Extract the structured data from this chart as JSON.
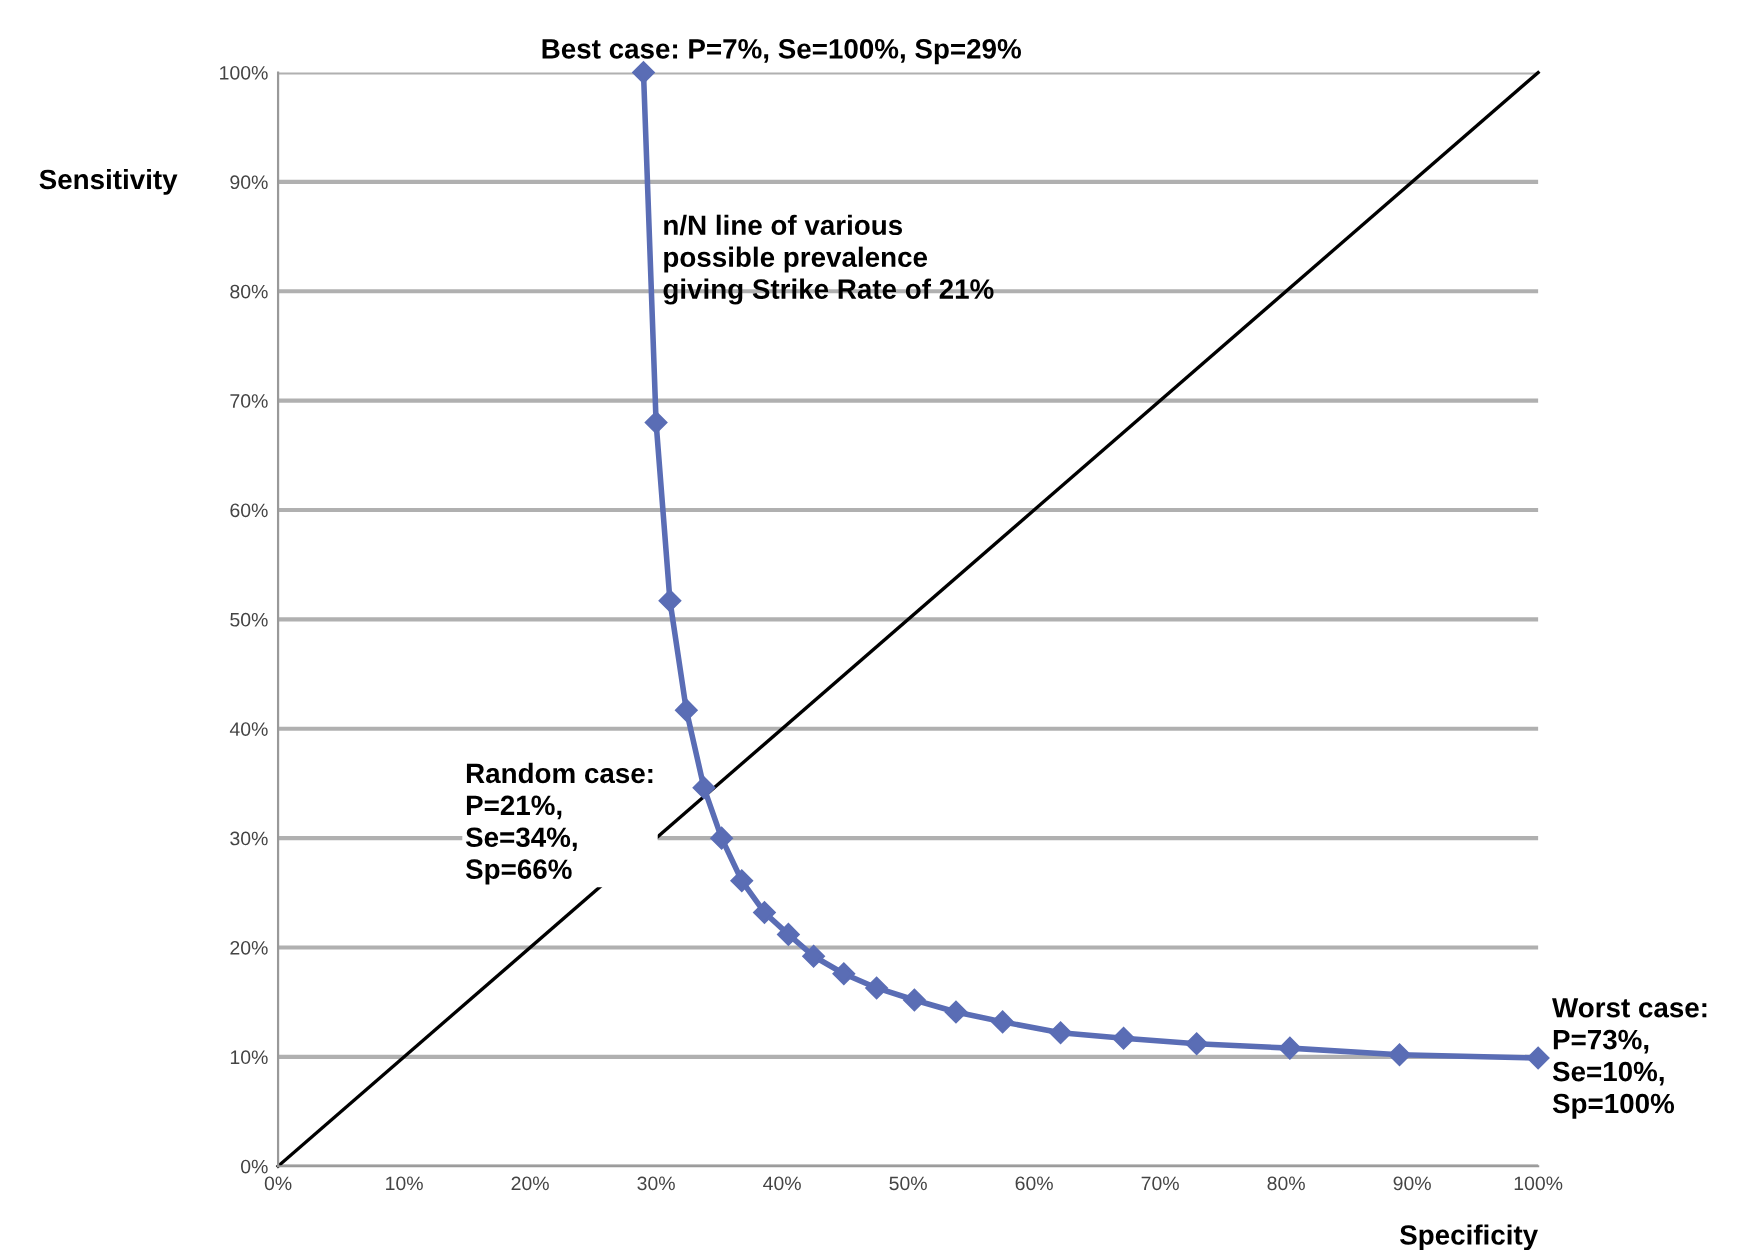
{
  "chart_data": {
    "type": "line",
    "xlabel": "Specificity",
    "ylabel": "Sensitivity",
    "xlim": [
      0,
      100
    ],
    "ylim": [
      0,
      100
    ],
    "xticks": [
      {
        "value": 0,
        "label": "0%"
      },
      {
        "value": 10,
        "label": "10%"
      },
      {
        "value": 20,
        "label": "20%"
      },
      {
        "value": 30,
        "label": "30%"
      },
      {
        "value": 40,
        "label": "40%"
      },
      {
        "value": 50,
        "label": "50%"
      },
      {
        "value": 60,
        "label": "60%"
      },
      {
        "value": 70,
        "label": "70%"
      },
      {
        "value": 80,
        "label": "80%"
      },
      {
        "value": 90,
        "label": "90%"
      },
      {
        "value": 100,
        "label": "100%"
      }
    ],
    "yticks": [
      {
        "value": 0,
        "label": "0%"
      },
      {
        "value": 10,
        "label": "10%"
      },
      {
        "value": 20,
        "label": "20%"
      },
      {
        "value": 30,
        "label": "30%"
      },
      {
        "value": 40,
        "label": "40%"
      },
      {
        "value": 50,
        "label": "50%"
      },
      {
        "value": 60,
        "label": "60%"
      },
      {
        "value": 70,
        "label": "70%"
      },
      {
        "value": 80,
        "label": "80%"
      },
      {
        "value": 90,
        "label": "90%"
      },
      {
        "value": 100,
        "label": "100%"
      }
    ],
    "grid": "y",
    "series": [
      {
        "color": "#5a6db5",
        "marker": "diamond",
        "line_style": "solid",
        "x": [
          29,
          30,
          31.1,
          32.4,
          33.8,
          35.2,
          36.8,
          38.6,
          40.5,
          42.5,
          44.9,
          47.5,
          50.5,
          53.8,
          57.5,
          62.1,
          67.1,
          72.9,
          80.3,
          89,
          100
        ],
        "values": [
          100,
          68,
          51.7,
          41.7,
          34.6,
          30,
          26.1,
          23.2,
          21.2,
          19.2,
          17.6,
          16.3,
          15.2,
          14.1,
          13.2,
          12.2,
          11.7,
          11.2,
          10.8,
          10.2,
          9.9
        ]
      },
      {
        "color": "#000000",
        "marker": "none",
        "line_style": "solid",
        "x": [
          0,
          100
        ],
        "values": [
          0,
          100
        ]
      }
    ],
    "annotations": [
      {
        "text": "Best case: P=7%, Se=100%, Sp=29%",
        "x": 29,
        "y": 100
      },
      {
        "text": "n/N line of various\npossible prevalence\ngiving Strike Rate of 21%"
      },
      {
        "text": "Random case:\nP=21%,\nSe=34%,\nSp=66%",
        "x": 33.8,
        "y": 34.6
      },
      {
        "text": "Worst case:\nP=73%,\nSe=10%,\nSp=100%",
        "x": 100,
        "y": 9.9
      }
    ]
  }
}
